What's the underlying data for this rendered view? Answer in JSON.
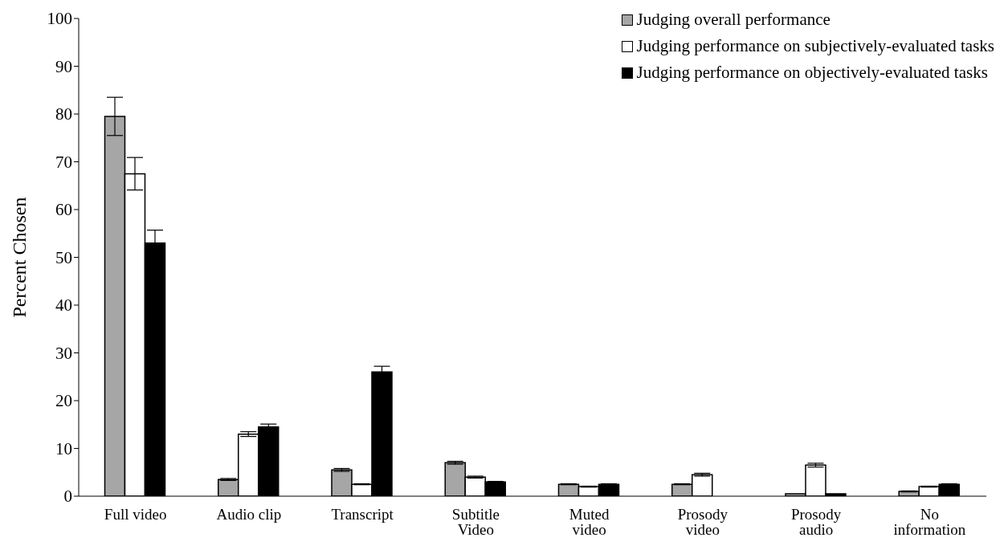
{
  "chart_data": {
    "type": "bar",
    "ylabel": "Percent Chosen",
    "categories": [
      "Full video",
      "Audio clip",
      "Transcript",
      "Subtitle Video",
      "Muted video",
      "Prosody video",
      "Prosody audio",
      "No information"
    ],
    "series": [
      {
        "name": "Judging overall performance",
        "color": "#a6a6a6",
        "values": [
          79.5,
          3.5,
          5.5,
          7,
          2.5,
          2.5,
          0.5,
          1
        ],
        "errors": [
          4,
          0.2,
          0.3,
          0.3,
          0.1,
          0.1,
          null,
          0.1
        ]
      },
      {
        "name": "Judging performance on subjectively-evaluated tasks",
        "color": "#ffffff",
        "values": [
          67.5,
          13,
          2.5,
          4,
          2,
          4.5,
          6.5,
          2
        ],
        "errors": [
          3.4,
          0.5,
          0.1,
          0.2,
          0.1,
          0.3,
          0.4,
          0.1
        ]
      },
      {
        "name": "Judging performance on objectively-evaluated tasks",
        "color": "#000000",
        "values": [
          53,
          14.5,
          26,
          3,
          2.5,
          0,
          0.5,
          2.5
        ],
        "errors": [
          2.7,
          0.6,
          1.2,
          0.1,
          0.1,
          null,
          null,
          0.1
        ]
      }
    ],
    "ylim": [
      0,
      100
    ],
    "yticks": [
      0,
      10,
      20,
      30,
      40,
      50,
      60,
      70,
      80,
      90,
      100
    ],
    "grid": false,
    "legend": "top right"
  }
}
